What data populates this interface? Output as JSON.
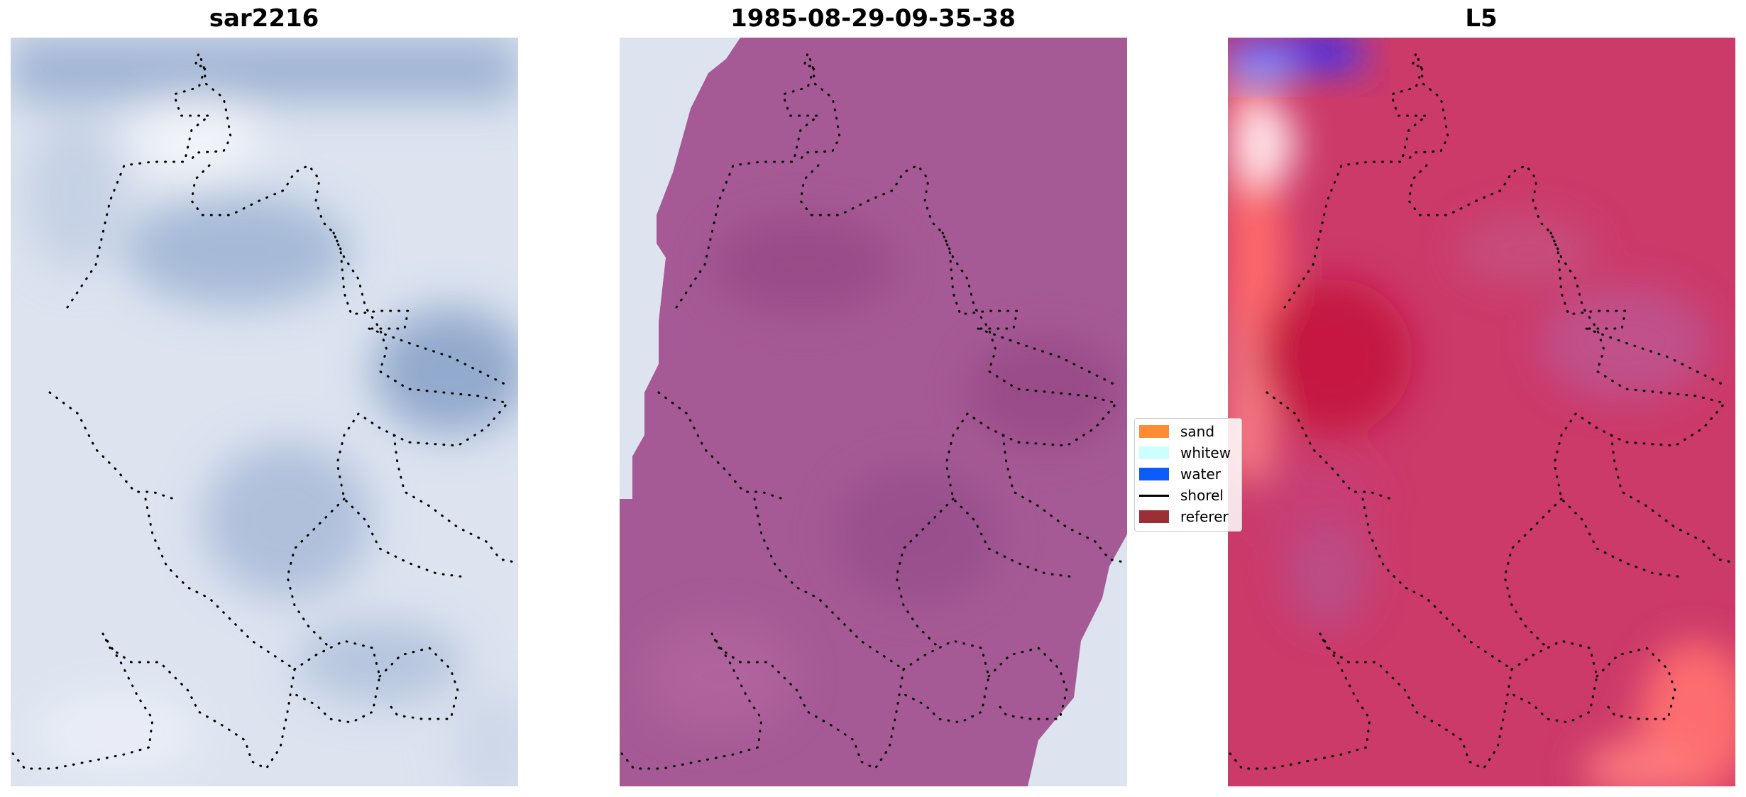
{
  "panels": [
    {
      "title": "sar2216",
      "style": "sar"
    },
    {
      "title": "1985-08-29-09-35-38",
      "style": "mask"
    },
    {
      "title": "L5",
      "style": "heat"
    }
  ],
  "legend": {
    "items": [
      {
        "label": "sand",
        "color": "#ff8c33",
        "kind": "patch"
      },
      {
        "label": "whitew",
        "color": "#ccffff",
        "kind": "patch"
      },
      {
        "label": "water",
        "color": "#0b5cff",
        "kind": "patch"
      },
      {
        "label": "shorel",
        "color": "#000000",
        "kind": "line"
      },
      {
        "label": "referer",
        "color": "#9c2f35",
        "kind": "patch"
      }
    ]
  },
  "colors": {
    "sar_base": "#dde4f0",
    "sar_dark": "#8fa8cc",
    "mask_fill": "#a65a95",
    "heat_fill": "#cc3a6a",
    "heat_red": "#ff6b6b",
    "heat_blue": "#3333ff",
    "shoreline": "#000000"
  }
}
